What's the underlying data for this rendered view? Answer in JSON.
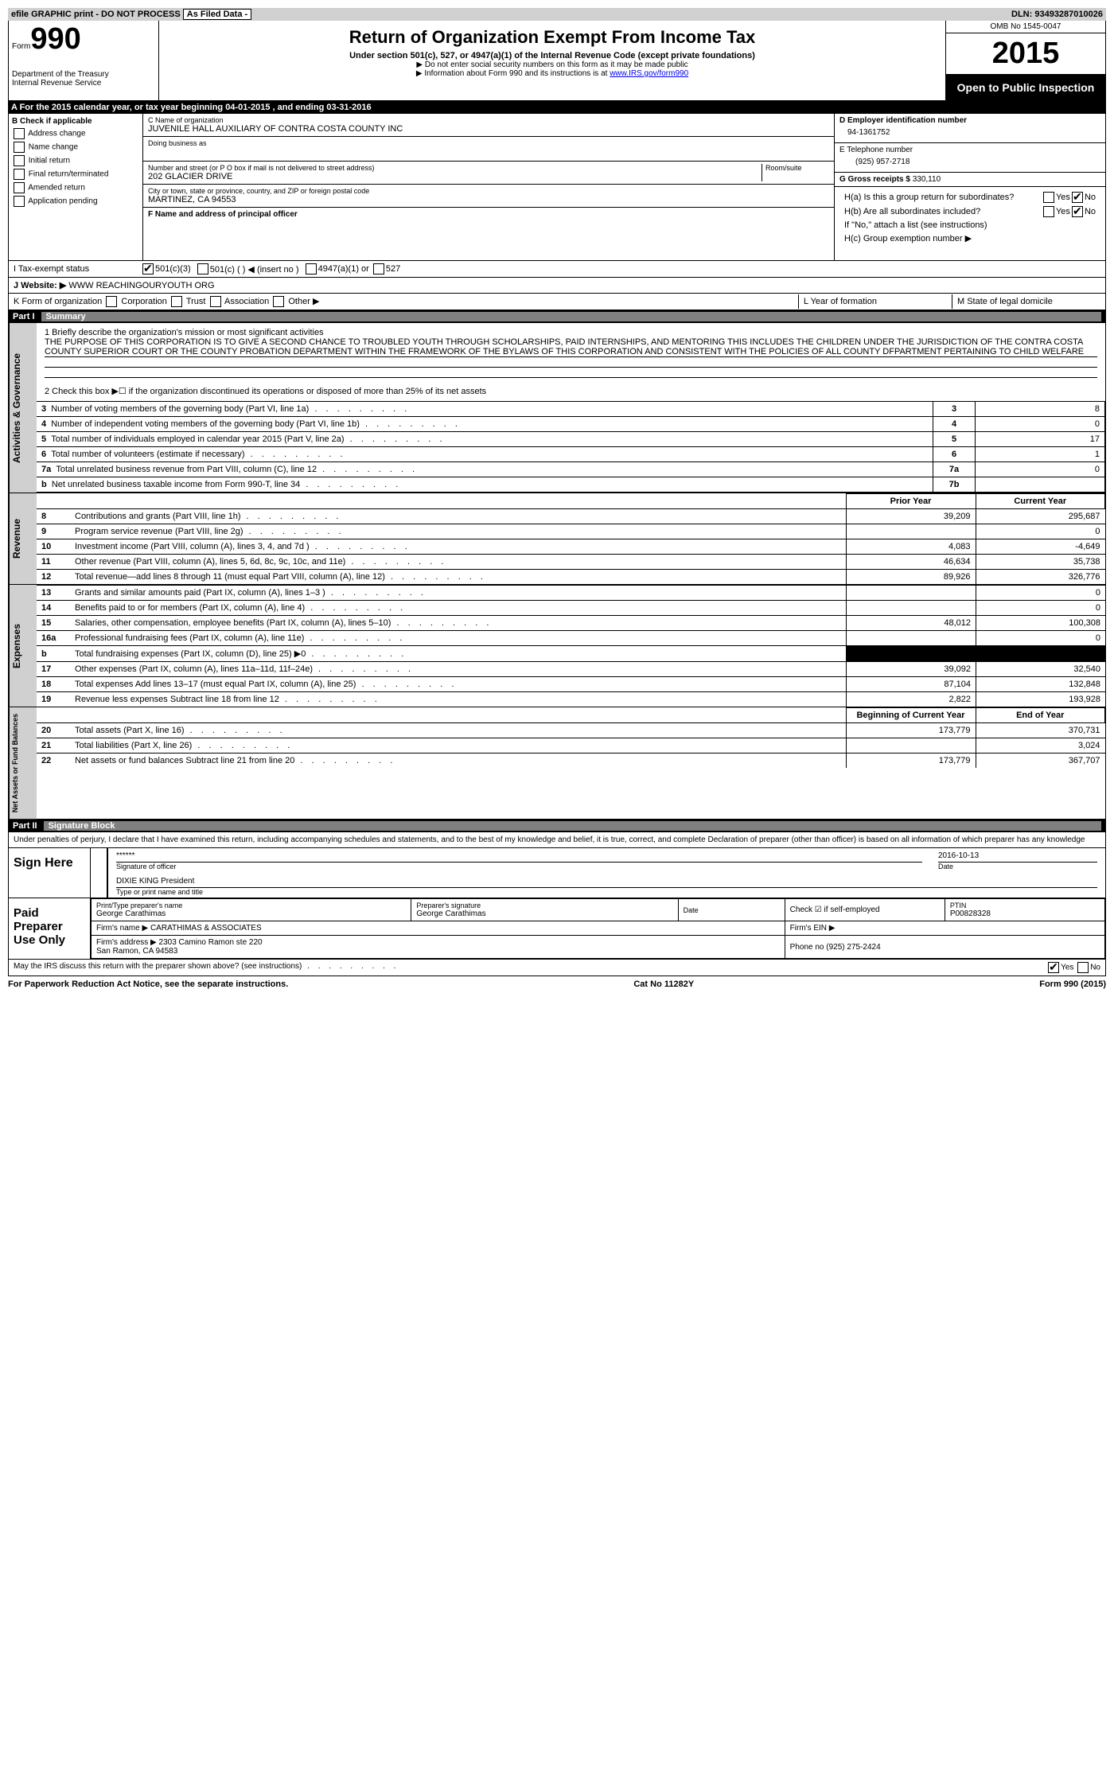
{
  "doc": {
    "efile_text": "efile GRAPHIC print - DO NOT PROCESS",
    "as_filed": "As Filed Data -",
    "dln_label": "DLN:",
    "dln": "93493287010026",
    "form_label": "Form",
    "form_num": "990",
    "dept1": "Department of the Treasury",
    "dept2": "Internal Revenue Service",
    "title": "Return of Organization Exempt From Income Tax",
    "subtitle": "Under section 501(c), 527, or 4947(a)(1) of the Internal Revenue Code (except private foundations)",
    "note1": "▶ Do not enter social security numbers on this form as it may be made public",
    "note2a": "▶ Information about Form 990 and its instructions is at ",
    "note2b": "www.IRS.gov/form990",
    "omb": "OMB No 1545-0047",
    "year": "2015",
    "open": "Open to Public Inspection"
  },
  "row_a": "A  For the 2015 calendar year, or tax year beginning 04-01-2015    , and ending 03-31-2016",
  "b": {
    "header": "B Check if applicable",
    "items": [
      "Address change",
      "Name change",
      "Initial return",
      "Final return/terminated",
      "Amended return",
      "Application pending"
    ]
  },
  "c": {
    "name_label": "C Name of organization",
    "name": "JUVENILE HALL AUXILIARY OF CONTRA COSTA COUNTY INC",
    "dba_label": "Doing business as",
    "dba": "",
    "street_label": "Number and street (or P O  box if mail is not delivered to street address)",
    "room_label": "Room/suite",
    "street": "202 GLACIER DRIVE",
    "city_label": "City or town, state or province, country, and ZIP or foreign postal code",
    "city": "MARTINEZ, CA  94553",
    "f_label": "F  Name and address of principal officer",
    "f_value": ""
  },
  "d": {
    "ein_label": "D Employer identification number",
    "ein": "94-1361752",
    "tel_label": "E Telephone number",
    "tel": "(925) 957-2718",
    "gross_label": "G Gross receipts $",
    "gross": "330,110"
  },
  "h": {
    "a": "H(a)  Is this a group return for subordinates?",
    "b": "H(b)  Are all subordinates included?",
    "ifno": "If \"No,\" attach a list  (see instructions)",
    "c": "H(c)   Group exemption number ▶"
  },
  "i": {
    "label": "I  Tax-exempt status",
    "opts": [
      "501(c)(3)",
      "501(c) (  ) ◀ (insert no )",
      "4947(a)(1) or",
      "527"
    ]
  },
  "j": {
    "label": "J  Website: ▶",
    "value": "WWW REACHINGOURYOUTH ORG"
  },
  "k": {
    "label": "K Form of organization",
    "opts": [
      "Corporation",
      "Trust",
      "Association",
      "Other ▶"
    ],
    "l": "L Year of formation",
    "m": "M State of legal domicile"
  },
  "part1": {
    "label": "Part I",
    "title": "Summary"
  },
  "summary": {
    "q1": "1 Briefly describe the organization's mission or most significant activities",
    "mission": "THE PURPOSE OF THIS CORPORATION IS TO GIVE A SECOND CHANCE TO TROUBLED YOUTH THROUGH SCHOLARSHIPS, PAID INTERNSHIPS, AND MENTORING  THIS INCLUDES THE CHILDREN UNDER THE JURISDICTION OF THE CONTRA COSTA COUNTY SUPERIOR COURT OR THE COUNTY PROBATION DEPARTMENT WITHIN THE FRAMEWORK OF THE BYLAWS OF THIS CORPORATION AND CONSISTENT WITH THE POLICIES OF ALL COUNTY DFPARTMENT PERTAINING TO CHILD WELFARE",
    "q2": "2  Check this box ▶☐ if the organization discontinued its operations or disposed of more than 25% of its net assets",
    "side_ag": "Activities & Governance",
    "side_rev": "Revenue",
    "side_exp": "Expenses",
    "side_na": "Net Assets or Fund Balances",
    "rows_ag": [
      {
        "n": "3",
        "t": "Number of voting members of the governing body (Part VI, line 1a)",
        "box": "3",
        "v": "8"
      },
      {
        "n": "4",
        "t": "Number of independent voting members of the governing body (Part VI, line 1b)",
        "box": "4",
        "v": "0"
      },
      {
        "n": "5",
        "t": "Total number of individuals employed in calendar year 2015 (Part V, line 2a)",
        "box": "5",
        "v": "17"
      },
      {
        "n": "6",
        "t": "Total number of volunteers (estimate if necessary)",
        "box": "6",
        "v": "1"
      },
      {
        "n": "7a",
        "t": "Total unrelated business revenue from Part VIII, column (C), line 12",
        "box": "7a",
        "v": "0"
      },
      {
        "n": "b",
        "t": "Net unrelated business taxable income from Form 990-T, line 34",
        "box": "7b",
        "v": ""
      }
    ],
    "col_prior": "Prior Year",
    "col_curr": "Current Year",
    "rows_rev": [
      {
        "n": "8",
        "t": "Contributions and grants (Part VIII, line 1h)",
        "p": "39,209",
        "c": "295,687"
      },
      {
        "n": "9",
        "t": "Program service revenue (Part VIII, line 2g)",
        "p": "",
        "c": "0"
      },
      {
        "n": "10",
        "t": "Investment income (Part VIII, column (A), lines 3, 4, and 7d )",
        "p": "4,083",
        "c": "-4,649"
      },
      {
        "n": "11",
        "t": "Other revenue (Part VIII, column (A), lines 5, 6d, 8c, 9c, 10c, and 11e)",
        "p": "46,634",
        "c": "35,738"
      },
      {
        "n": "12",
        "t": "Total revenue—add lines 8 through 11 (must equal Part VIII, column (A), line 12)",
        "p": "89,926",
        "c": "326,776"
      }
    ],
    "rows_exp": [
      {
        "n": "13",
        "t": "Grants and similar amounts paid (Part IX, column (A), lines 1–3 )",
        "p": "",
        "c": "0"
      },
      {
        "n": "14",
        "t": "Benefits paid to or for members (Part IX, column (A), line 4)",
        "p": "",
        "c": "0"
      },
      {
        "n": "15",
        "t": "Salaries, other compensation, employee benefits (Part IX, column (A), lines 5–10)",
        "p": "48,012",
        "c": "100,308"
      },
      {
        "n": "16a",
        "t": "Professional fundraising fees (Part IX, column (A), line 11e)",
        "p": "",
        "c": "0"
      },
      {
        "n": "b",
        "t": "Total fundraising expenses (Part IX, column (D), line 25) ▶0",
        "p": "BLACK",
        "c": "BLACK"
      },
      {
        "n": "17",
        "t": "Other expenses (Part IX, column (A), lines 11a–11d, 11f–24e)",
        "p": "39,092",
        "c": "32,540"
      },
      {
        "n": "18",
        "t": "Total expenses  Add lines 13–17 (must equal Part IX, column (A), line 25)",
        "p": "87,104",
        "c": "132,848"
      },
      {
        "n": "19",
        "t": "Revenue less expenses  Subtract line 18 from line 12",
        "p": "2,822",
        "c": "193,928"
      }
    ],
    "col_boy": "Beginning of Current Year",
    "col_eoy": "End of Year",
    "rows_na": [
      {
        "n": "20",
        "t": "Total assets (Part X, line 16)",
        "p": "173,779",
        "c": "370,731"
      },
      {
        "n": "21",
        "t": "Total liabilities (Part X, line 26)",
        "p": "",
        "c": "3,024"
      },
      {
        "n": "22",
        "t": "Net assets or fund balances  Subtract line 21 from line 20",
        "p": "173,779",
        "c": "367,707"
      }
    ]
  },
  "part2": {
    "label": "Part II",
    "title": "Signature Block"
  },
  "sig": {
    "perjury": "Under penalties of perjury, I declare that I have examined this return, including accompanying schedules and statements, and to the best of my knowledge and belief, it is true, correct, and complete  Declaration of preparer (other than officer) is based on all information of which preparer has any knowledge",
    "sign_here": "Sign Here",
    "stars": "******",
    "sig_officer": "Signature of officer",
    "date": "2016-10-13",
    "date_label": "Date",
    "name_title": "DIXIE KING President",
    "type_label": "Type or print name and title",
    "paid_prep": "Paid Preparer Use Only",
    "prep_name_label": "Print/Type preparer's name",
    "prep_name": "George Carathimas",
    "prep_sig_label": "Preparer's signature",
    "prep_sig": "George Carathimas",
    "prep_date_label": "Date",
    "check_self": "Check ☑ if self-employed",
    "ptin_label": "PTIN",
    "ptin": "P00828328",
    "firm_name_label": "Firm's name    ▶",
    "firm_name": "CARATHIMAS & ASSOCIATES",
    "firm_ein_label": "Firm's EIN ▶",
    "firm_addr_label": "Firm's address ▶",
    "firm_addr": "2303 Camino Ramon ste 220\nSan Ramon, CA  94583",
    "firm_phone_label": "Phone no",
    "firm_phone": "(925) 275-2424",
    "may_irs": "May the IRS discuss this return with the preparer shown above? (see instructions)",
    "yes": "Yes",
    "no": "No"
  },
  "footer": {
    "left": "For Paperwork Reduction Act Notice, see the separate instructions.",
    "mid": "Cat No 11282Y",
    "right": "Form 990 (2015)"
  }
}
